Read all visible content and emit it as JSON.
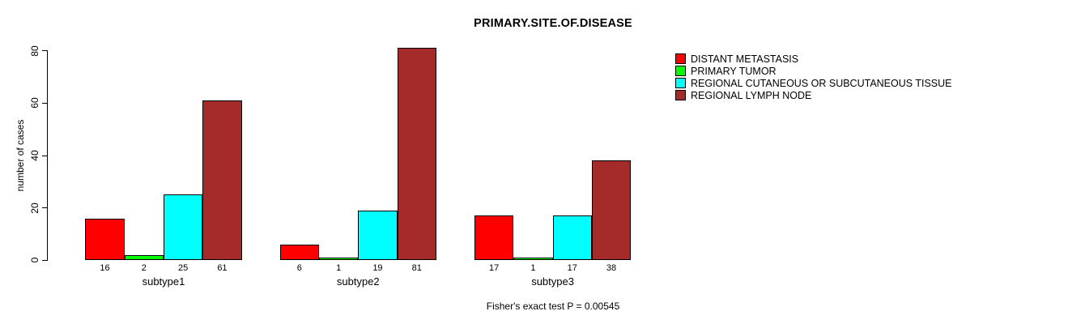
{
  "chart_data": {
    "type": "bar",
    "title": "PRIMARY.SITE.OF.DISEASE",
    "ylabel": "number of cases",
    "xlabel": "",
    "ylim": [
      0,
      80
    ],
    "yticks": [
      0,
      20,
      40,
      60,
      80
    ],
    "grid": false,
    "legend_position": "right",
    "categories": [
      "subtype1",
      "subtype2",
      "subtype3"
    ],
    "series": [
      {
        "name": "DISTANT METASTASIS",
        "color": "#ff0000",
        "values": [
          16,
          6,
          17
        ]
      },
      {
        "name": "PRIMARY TUMOR",
        "color": "#00ff00",
        "values": [
          2,
          1,
          1
        ]
      },
      {
        "name": "REGIONAL CUTANEOUS OR SUBCUTANEOUS TISSUE",
        "color": "#00ffff",
        "values": [
          25,
          19,
          17
        ]
      },
      {
        "name": "REGIONAL LYMPH NODE",
        "color": "#a52a2a",
        "values": [
          61,
          81,
          38
        ]
      }
    ],
    "bar_value_labels": [
      [
        16,
        2,
        25,
        61
      ],
      [
        6,
        1,
        19,
        81
      ],
      [
        17,
        1,
        17,
        38
      ]
    ],
    "footnote": "Fisher's exact test P = 0.00545"
  }
}
